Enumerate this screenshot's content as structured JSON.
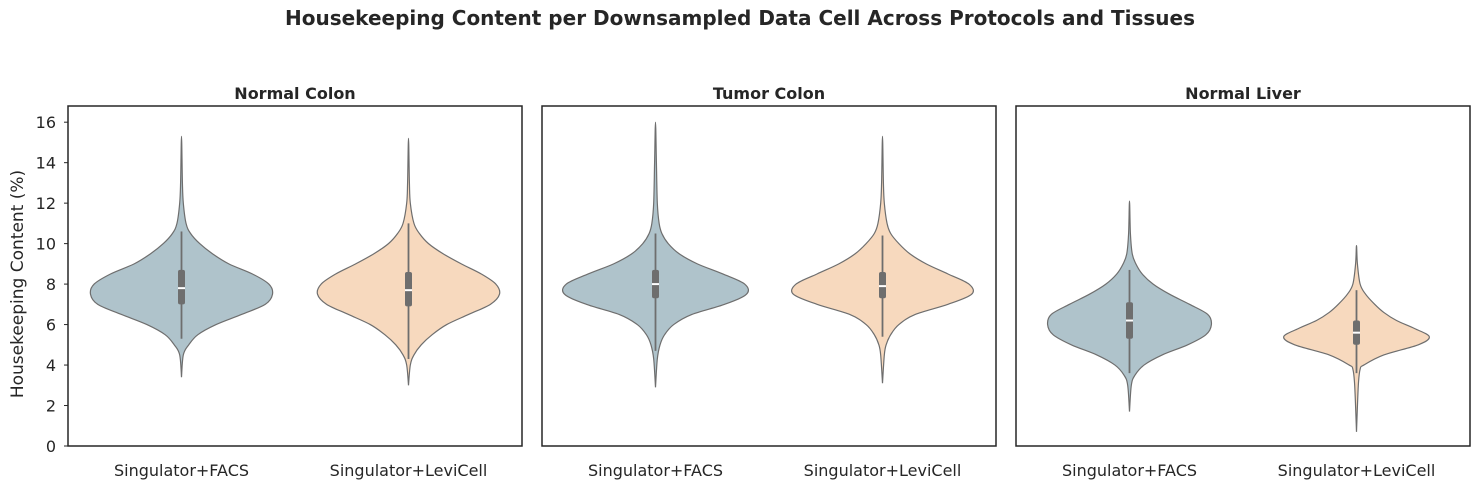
{
  "chart_data": {
    "type": "violin",
    "title": "Housekeeping Content per Downsampled Data Cell Across Protocols and Tissues",
    "ylabel": "Housekeeping Content (%)",
    "ylim": [
      0,
      16.8
    ],
    "yticks": [
      0,
      2,
      4,
      6,
      8,
      10,
      12,
      14,
      16
    ],
    "categories": [
      "Singulator+FACS",
      "Singulator+LeviCell"
    ],
    "colors": {
      "Singulator+FACS": "#afc3cb",
      "Singulator+LeviCell": "#f7d9be",
      "outline": "#6e6e6e",
      "box": "#6e6e6e",
      "median": "#ffffff"
    },
    "grid": false,
    "legend": "none",
    "panels": [
      {
        "title": "Normal Colon",
        "violins": [
          {
            "category": "Singulator+FACS",
            "min": 3.4,
            "max": 15.3,
            "q1": 7.0,
            "median": 7.8,
            "q3": 8.7,
            "whisker_low": 5.3,
            "whisker_high": 10.6,
            "profile": [
              [
                3.4,
                0.0
              ],
              [
                4.5,
                0.02
              ],
              [
                5.0,
                0.08
              ],
              [
                5.5,
                0.18
              ],
              [
                6.0,
                0.38
              ],
              [
                6.5,
                0.66
              ],
              [
                7.0,
                0.92
              ],
              [
                7.5,
                1.0
              ],
              [
                8.0,
                0.96
              ],
              [
                8.5,
                0.78
              ],
              [
                9.0,
                0.52
              ],
              [
                9.5,
                0.34
              ],
              [
                10.0,
                0.2
              ],
              [
                10.5,
                0.1
              ],
              [
                11.0,
                0.05
              ],
              [
                12.0,
                0.02
              ],
              [
                13.0,
                0.01
              ],
              [
                15.3,
                0.0
              ]
            ]
          },
          {
            "category": "Singulator+LeviCell",
            "min": 3.0,
            "max": 15.2,
            "q1": 6.9,
            "median": 7.7,
            "q3": 8.6,
            "whisker_low": 4.3,
            "whisker_high": 11.0,
            "profile": [
              [
                3.0,
                0.0
              ],
              [
                4.0,
                0.02
              ],
              [
                4.5,
                0.06
              ],
              [
                5.0,
                0.14
              ],
              [
                5.5,
                0.26
              ],
              [
                6.0,
                0.42
              ],
              [
                6.5,
                0.66
              ],
              [
                7.0,
                0.9
              ],
              [
                7.5,
                1.0
              ],
              [
                8.0,
                0.96
              ],
              [
                8.5,
                0.8
              ],
              [
                9.0,
                0.58
              ],
              [
                9.5,
                0.38
              ],
              [
                10.0,
                0.22
              ],
              [
                10.5,
                0.12
              ],
              [
                11.0,
                0.06
              ],
              [
                12.0,
                0.02
              ],
              [
                13.0,
                0.01
              ],
              [
                15.2,
                0.0
              ]
            ]
          }
        ]
      },
      {
        "title": "Tumor Colon",
        "violins": [
          {
            "category": "Singulator+FACS",
            "min": 2.9,
            "max": 16.0,
            "q1": 7.3,
            "median": 8.0,
            "q3": 8.7,
            "whisker_low": 4.7,
            "whisker_high": 10.5,
            "profile": [
              [
                2.9,
                0.0
              ],
              [
                4.3,
                0.02
              ],
              [
                5.0,
                0.05
              ],
              [
                5.5,
                0.1
              ],
              [
                6.0,
                0.2
              ],
              [
                6.5,
                0.4
              ],
              [
                7.0,
                0.76
              ],
              [
                7.5,
                1.0
              ],
              [
                8.0,
                0.98
              ],
              [
                8.5,
                0.74
              ],
              [
                9.0,
                0.46
              ],
              [
                9.5,
                0.26
              ],
              [
                10.0,
                0.14
              ],
              [
                10.5,
                0.07
              ],
              [
                11.0,
                0.04
              ],
              [
                12.0,
                0.02
              ],
              [
                14.0,
                0.01
              ],
              [
                16.0,
                0.0
              ]
            ]
          },
          {
            "category": "Singulator+LeviCell",
            "min": 3.1,
            "max": 15.3,
            "q1": 7.3,
            "median": 7.9,
            "q3": 8.6,
            "whisker_low": 5.4,
            "whisker_high": 10.4,
            "profile": [
              [
                3.1,
                0.0
              ],
              [
                4.5,
                0.02
              ],
              [
                5.0,
                0.04
              ],
              [
                5.5,
                0.09
              ],
              [
                6.0,
                0.18
              ],
              [
                6.5,
                0.36
              ],
              [
                7.0,
                0.72
              ],
              [
                7.5,
                0.98
              ],
              [
                8.0,
                0.95
              ],
              [
                8.5,
                0.72
              ],
              [
                9.0,
                0.48
              ],
              [
                9.5,
                0.3
              ],
              [
                10.0,
                0.18
              ],
              [
                10.5,
                0.09
              ],
              [
                11.0,
                0.05
              ],
              [
                12.0,
                0.02
              ],
              [
                13.0,
                0.01
              ],
              [
                15.3,
                0.0
              ]
            ]
          }
        ]
      },
      {
        "title": "Normal Liver",
        "violins": [
          {
            "category": "Singulator+FACS",
            "min": 1.7,
            "max": 12.1,
            "q1": 5.3,
            "median": 6.2,
            "q3": 7.1,
            "whisker_low": 3.6,
            "whisker_high": 8.7,
            "profile": [
              [
                1.7,
                0.0
              ],
              [
                3.0,
                0.02
              ],
              [
                3.5,
                0.06
              ],
              [
                4.0,
                0.16
              ],
              [
                4.5,
                0.36
              ],
              [
                5.0,
                0.64
              ],
              [
                5.5,
                0.84
              ],
              [
                6.0,
                0.9
              ],
              [
                6.5,
                0.86
              ],
              [
                7.0,
                0.66
              ],
              [
                7.5,
                0.44
              ],
              [
                8.0,
                0.26
              ],
              [
                8.5,
                0.14
              ],
              [
                9.0,
                0.07
              ],
              [
                9.5,
                0.03
              ],
              [
                10.5,
                0.01
              ],
              [
                12.1,
                0.0
              ]
            ]
          },
          {
            "category": "Singulator+LeviCell",
            "min": 0.7,
            "max": 9.9,
            "q1": 5.0,
            "median": 5.6,
            "q3": 6.2,
            "whisker_low": 3.6,
            "whisker_high": 7.7,
            "profile": [
              [
                0.7,
                0.0
              ],
              [
                3.0,
                0.02
              ],
              [
                3.8,
                0.04
              ],
              [
                4.0,
                0.08
              ],
              [
                4.5,
                0.3
              ],
              [
                5.0,
                0.68
              ],
              [
                5.4,
                0.8
              ],
              [
                5.8,
                0.64
              ],
              [
                6.2,
                0.44
              ],
              [
                6.6,
                0.3
              ],
              [
                7.0,
                0.2
              ],
              [
                7.5,
                0.1
              ],
              [
                8.0,
                0.04
              ],
              [
                9.0,
                0.01
              ],
              [
                9.9,
                0.0
              ]
            ]
          }
        ]
      }
    ]
  }
}
